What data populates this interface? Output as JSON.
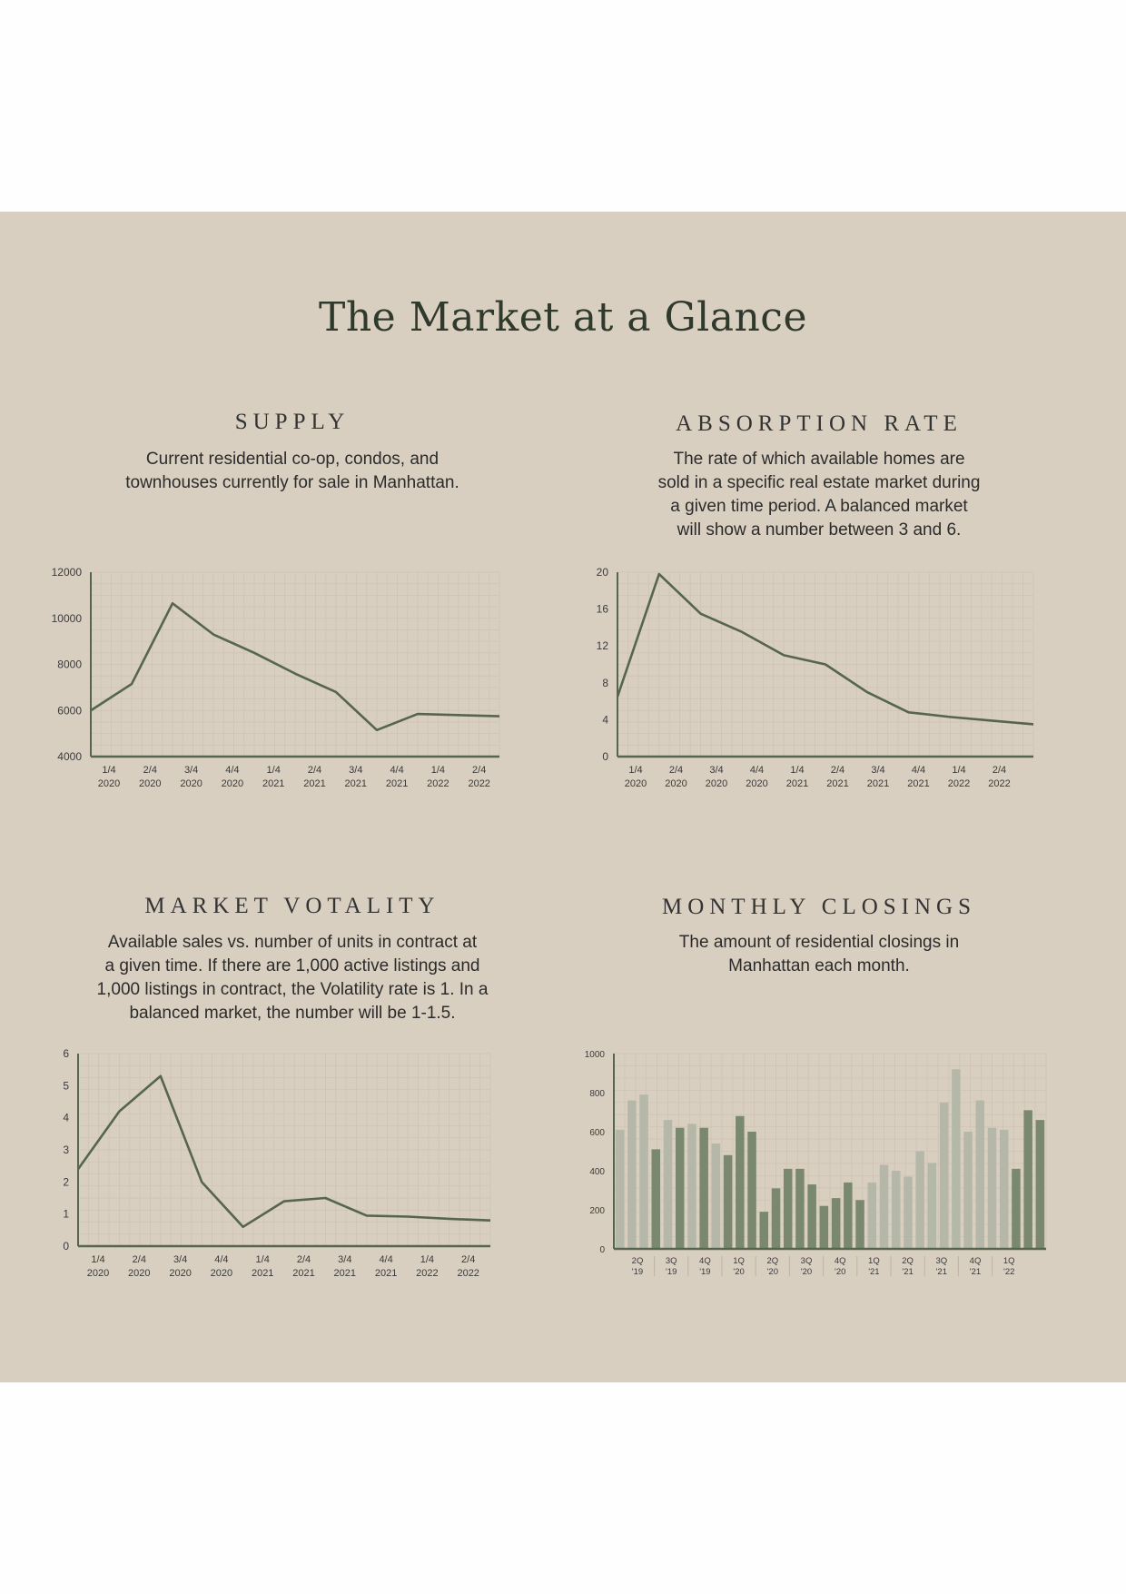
{
  "page_title": "The Market at a Glance",
  "colors": {
    "panel_bg": "#d8cfc1",
    "line": "#56654f",
    "bar_light": "#b5b8a8",
    "bar_dark": "#7b8870",
    "grid": "#cfc3b5"
  },
  "sections": {
    "supply": {
      "title": "SUPPLY",
      "description_lines": [
        "Current residential co-op, condos, and",
        "townhouses currently for sale in Manhattan."
      ]
    },
    "absorption": {
      "title": "ABSORPTION RATE",
      "description_lines": [
        "The rate of which available homes are",
        "sold in a specific real estate market during",
        "a given time period. A balanced market",
        "will show a number between 3 and 6."
      ]
    },
    "volatility": {
      "title": "MARKET VOTALITY",
      "description_lines": [
        "Available sales vs. number of units in contract at",
        "a given time. If there are 1,000 active listings and",
        "1,000 listings in contract, the Volatility rate is 1. In a",
        "balanced market, the number will be 1-1.5."
      ]
    },
    "closings": {
      "title": "MONTHLY CLOSINGS",
      "description_lines": [
        "The amount of residential closings in",
        "Manhattan each month."
      ]
    }
  },
  "chart_data": [
    {
      "id": "supply",
      "type": "line",
      "x_start_value": 0,
      "x_end_value": 10,
      "x": [
        0,
        1,
        2,
        3,
        4,
        5,
        6,
        7,
        8,
        9,
        10
      ],
      "y": [
        6000,
        7150,
        10650,
        9300,
        8500,
        7600,
        6800,
        5150,
        5850,
        5800,
        5750
      ],
      "x_tick_labels": [
        [
          "1/4",
          "2020"
        ],
        [
          "2/4",
          "2020"
        ],
        [
          "3/4",
          "2020"
        ],
        [
          "4/4",
          "2020"
        ],
        [
          "1/4",
          "2021"
        ],
        [
          "2/4",
          "2021"
        ],
        [
          "3/4",
          "2021"
        ],
        [
          "4/4",
          "2021"
        ],
        [
          "1/4",
          "2022"
        ],
        [
          "2/4",
          "2022"
        ]
      ],
      "y_ticks": [
        4000,
        6000,
        8000,
        10000,
        12000
      ],
      "ylim": [
        4000,
        12000
      ],
      "grid": true
    },
    {
      "id": "absorption",
      "type": "line",
      "x": [
        0,
        1,
        2,
        3,
        4,
        5,
        6,
        7,
        8,
        9,
        10
      ],
      "y": [
        6.5,
        19.8,
        15.5,
        13.5,
        11,
        10,
        7,
        4.8,
        4.3,
        3.9,
        3.5
      ],
      "x_tick_labels": [
        [
          "1/4",
          "2020"
        ],
        [
          "2/4",
          "2020"
        ],
        [
          "3/4",
          "2020"
        ],
        [
          "4/4",
          "2020"
        ],
        [
          "1/4",
          "2021"
        ],
        [
          "2/4",
          "2021"
        ],
        [
          "3/4",
          "2021"
        ],
        [
          "4/4",
          "2021"
        ],
        [
          "1/4",
          "2022"
        ],
        [
          "2/4",
          "2022"
        ]
      ],
      "y_ticks": [
        0,
        4,
        8,
        12,
        16,
        20
      ],
      "ylim": [
        0,
        20
      ],
      "grid": true
    },
    {
      "id": "volatility",
      "type": "line",
      "x": [
        0,
        1,
        2,
        3,
        4,
        5,
        6,
        7,
        8,
        9,
        10
      ],
      "y": [
        2.4,
        4.2,
        5.3,
        2.0,
        0.6,
        1.4,
        1.5,
        0.95,
        0.92,
        0.85,
        0.8
      ],
      "x_tick_labels": [
        [
          "1/4",
          "2020"
        ],
        [
          "2/4",
          "2020"
        ],
        [
          "3/4",
          "2020"
        ],
        [
          "4/4",
          "2020"
        ],
        [
          "1/4",
          "2021"
        ],
        [
          "2/4",
          "2021"
        ],
        [
          "3/4",
          "2021"
        ],
        [
          "4/4",
          "2021"
        ],
        [
          "1/4",
          "2022"
        ],
        [
          "2/4",
          "2022"
        ]
      ],
      "y_ticks": [
        0,
        1,
        2,
        3,
        4,
        5,
        6
      ],
      "ylim": [
        0,
        6
      ],
      "grid": true
    },
    {
      "id": "closings",
      "type": "bar",
      "values": [
        610,
        760,
        790,
        510,
        660,
        620,
        640,
        620,
        540,
        480,
        680,
        600,
        190,
        310,
        410,
        410,
        330,
        220,
        260,
        340,
        250,
        340,
        430,
        400,
        370,
        500,
        440,
        750,
        920,
        600,
        760,
        620,
        610,
        410,
        710,
        660
      ],
      "bar_shades": [
        "light",
        "light",
        "light",
        "dark",
        "light",
        "dark",
        "light",
        "dark",
        "light",
        "dark",
        "dark",
        "dark",
        "dark",
        "dark",
        "dark",
        "dark",
        "dark",
        "dark",
        "dark",
        "dark",
        "dark",
        "light",
        "light",
        "light",
        "light",
        "light",
        "light",
        "light",
        "light",
        "light",
        "light",
        "light",
        "light",
        "dark",
        "dark",
        "dark"
      ],
      "x_tick_labels": [
        [
          "2Q",
          "'19"
        ],
        [
          "3Q",
          "'19"
        ],
        [
          "4Q",
          "'19"
        ],
        [
          "1Q",
          "'20"
        ],
        [
          "2Q",
          "'20"
        ],
        [
          "3Q",
          "'20"
        ],
        [
          "4Q",
          "'20"
        ],
        [
          "1Q",
          "'21"
        ],
        [
          "2Q",
          "'21"
        ],
        [
          "3Q",
          "'21"
        ],
        [
          "4Q",
          "'21"
        ],
        [
          "1Q",
          "'22"
        ]
      ],
      "y_ticks": [
        0,
        200,
        400,
        600,
        800,
        1000
      ],
      "ylim": [
        0,
        1000
      ],
      "grid": true
    }
  ]
}
